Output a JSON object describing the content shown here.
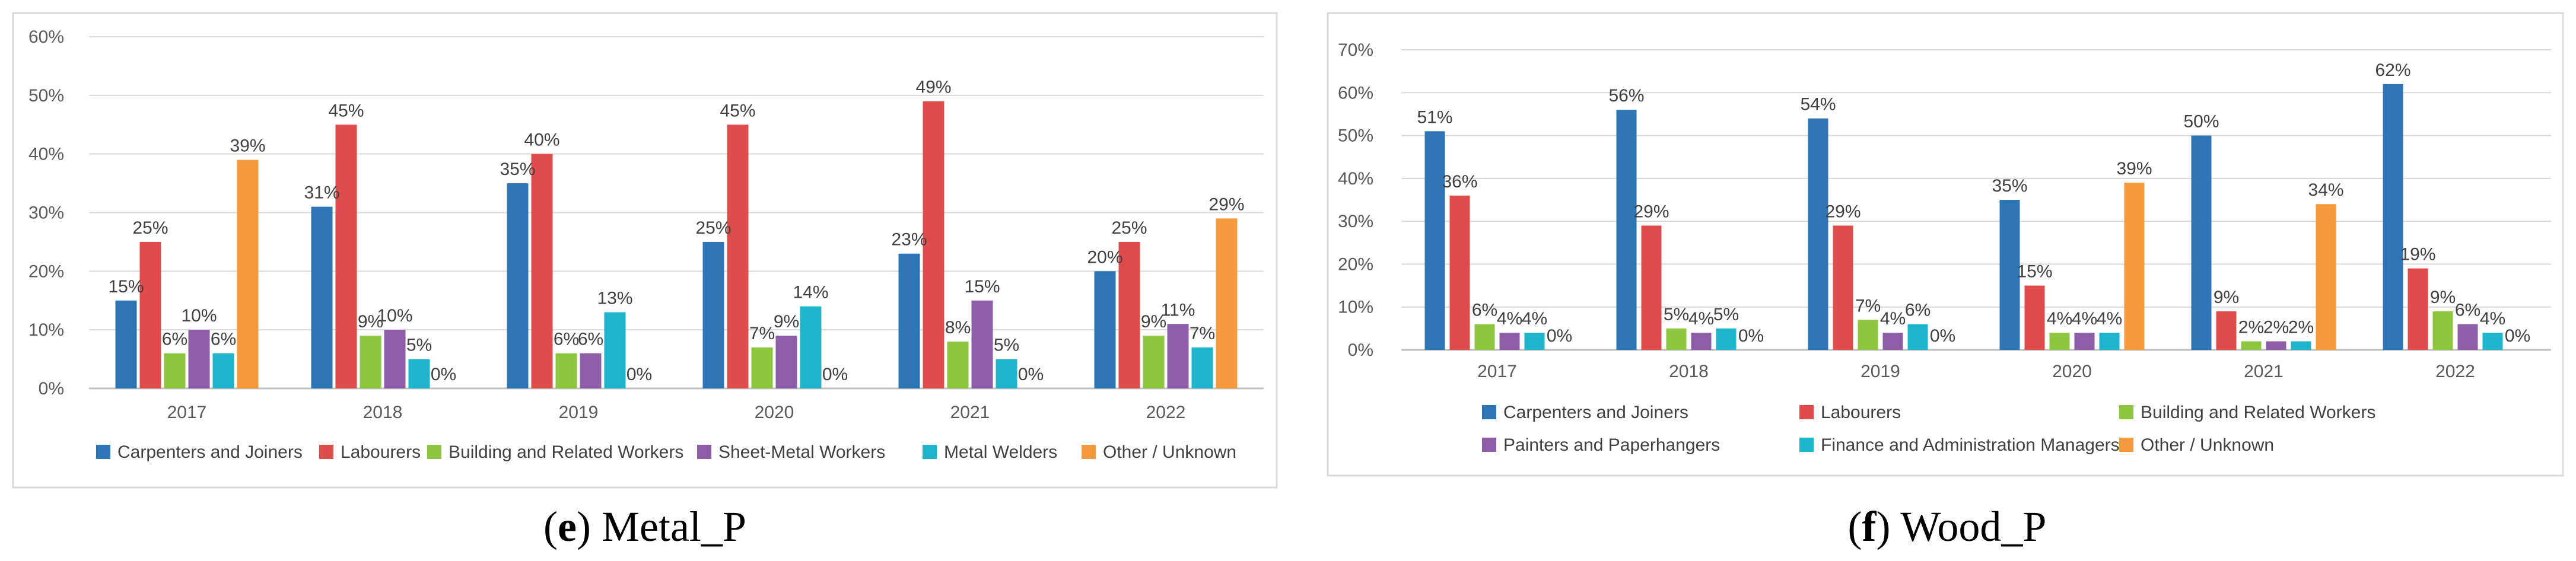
{
  "colors": {
    "Carpenters and Joiners": "#2E75B6",
    "Labourers": "#E04B4B",
    "Building and Related Workers": "#8DC63F",
    "Sheet-Metal Workers": "#8E5DA8",
    "Painters and Paperhangers": "#8E5DA8",
    "Metal Welders": "#1DB4CC",
    "Finance and Administration Managers": "#1DB4CC",
    "Other / Unknown": "#F79A3E"
  },
  "chart_data": [
    {
      "type": "bar",
      "title": "",
      "xlabel": "",
      "ylabel": "",
      "ylim": [
        0,
        60
      ],
      "yticks": [
        "0%",
        "10%",
        "20%",
        "30%",
        "40%",
        "50%",
        "60%"
      ],
      "grid": true,
      "legend": "bottom",
      "categories": [
        "2017",
        "2018",
        "2019",
        "2020",
        "2021",
        "2022"
      ],
      "series": [
        {
          "name": "Carpenters and Joiners",
          "values": [
            15,
            31,
            35,
            25,
            23,
            20
          ],
          "labels": [
            "15%",
            "31%",
            "35%",
            "25%",
            "23%",
            "20%"
          ]
        },
        {
          "name": "Labourers",
          "values": [
            25,
            45,
            40,
            45,
            49,
            25
          ],
          "labels": [
            "25%",
            "45%",
            "40%",
            "45%",
            "49%",
            "25%"
          ]
        },
        {
          "name": "Building and Related Workers",
          "values": [
            6,
            9,
            6,
            7,
            8,
            9
          ],
          "labels": [
            "6%",
            "9%",
            "6%",
            "7%",
            "8%",
            "9%"
          ]
        },
        {
          "name": "Sheet-Metal Workers",
          "values": [
            10,
            10,
            6,
            9,
            15,
            11
          ],
          "labels": [
            "10%",
            "10%",
            "6%",
            "9%",
            "15%",
            "11%"
          ]
        },
        {
          "name": "Metal Welders",
          "values": [
            6,
            5,
            13,
            14,
            5,
            7
          ],
          "labels": [
            "6%",
            "5%",
            "13%",
            "14%",
            "5%",
            "7%"
          ]
        },
        {
          "name": "Other / Unknown",
          "values": [
            39,
            0,
            0,
            0,
            0,
            29
          ],
          "labels": [
            "39%",
            "0%",
            "0%",
            "0%",
            "0%",
            "29%"
          ]
        }
      ],
      "caption_letter": "e",
      "caption_text": "Metal_P"
    },
    {
      "type": "bar",
      "title": "",
      "xlabel": "",
      "ylabel": "",
      "ylim": [
        0,
        70
      ],
      "yticks": [
        "0%",
        "10%",
        "20%",
        "30%",
        "40%",
        "50%",
        "60%",
        "70%"
      ],
      "grid": true,
      "legend": "bottom",
      "categories": [
        "2017",
        "2018",
        "2019",
        "2020",
        "2021",
        "2022"
      ],
      "series": [
        {
          "name": "Carpenters and Joiners",
          "values": [
            51,
            56,
            54,
            35,
            50,
            62
          ],
          "labels": [
            "51%",
            "56%",
            "54%",
            "35%",
            "50%",
            "62%"
          ]
        },
        {
          "name": "Labourers",
          "values": [
            36,
            29,
            29,
            15,
            9,
            19
          ],
          "labels": [
            "36%",
            "29%",
            "29%",
            "15%",
            "9%",
            "19%"
          ]
        },
        {
          "name": "Building and Related Workers",
          "values": [
            6,
            5,
            7,
            4,
            2,
            9
          ],
          "labels": [
            "6%",
            "5%",
            "7%",
            "4%",
            "2%",
            "9%"
          ]
        },
        {
          "name": "Painters and Paperhangers",
          "values": [
            4,
            4,
            4,
            4,
            2,
            6
          ],
          "labels": [
            "4%",
            "4%",
            "4%",
            "4%",
            "2%",
            "6%"
          ]
        },
        {
          "name": "Finance and Administration Managers",
          "values": [
            4,
            5,
            6,
            4,
            2,
            4
          ],
          "labels": [
            "4%",
            "5%",
            "6%",
            "4%",
            "2%",
            "4%"
          ]
        },
        {
          "name": "Other / Unknown",
          "values": [
            0,
            0,
            0,
            39,
            34,
            0
          ],
          "labels": [
            "0%",
            "0%",
            "0%",
            "39%",
            "34%",
            "0%"
          ]
        }
      ],
      "caption_letter": "f",
      "caption_text": "Wood_P"
    }
  ]
}
